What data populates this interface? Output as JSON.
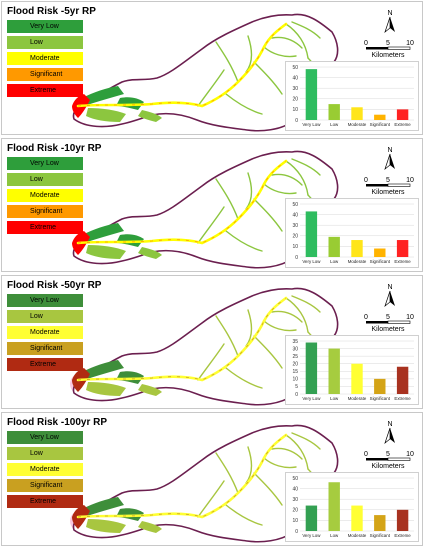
{
  "legend_labels": [
    "Very Low",
    "Low",
    "Moderate",
    "Significant",
    "Extreme"
  ],
  "legend_colors_set1": [
    "#2e9e3b",
    "#8cc63f",
    "#ffff00",
    "#ff9900",
    "#ff0000"
  ],
  "legend_colors_set2": [
    "#3e8e3a",
    "#a8c640",
    "#ffff33",
    "#c9a020",
    "#b02a12"
  ],
  "scale": {
    "ticks": [
      "0",
      "5",
      "10"
    ],
    "unit": "Kilometers"
  },
  "north_label": "N",
  "panels": [
    {
      "title": "Flood Risk -5yr RP",
      "palette": "set1"
    },
    {
      "title": "Flood Risk -10yr RP",
      "palette": "set1"
    },
    {
      "title": "Flood Risk -50yr RP",
      "palette": "set2"
    },
    {
      "title": "Flood Risk -100yr RP",
      "palette": "set2"
    }
  ],
  "chart_data": [
    {
      "type": "bar",
      "categories": [
        "Very Low",
        "Low",
        "Moderate",
        "Significant",
        "Extreme"
      ],
      "values": [
        48,
        15,
        12,
        5,
        10
      ],
      "ylim": [
        0,
        50
      ],
      "yticks": [
        "0",
        "10",
        "20",
        "30",
        "40",
        "50"
      ],
      "colors": [
        "#2ebc5f",
        "#99cc33",
        "#ffe51a",
        "#ffb300",
        "#ff2222"
      ],
      "grid": true
    },
    {
      "type": "bar",
      "categories": [
        "Very Low",
        "Low",
        "Moderate",
        "Significant",
        "Extreme"
      ],
      "values": [
        43,
        19,
        16,
        8,
        16
      ],
      "ylim": [
        0,
        50
      ],
      "yticks": [
        "0",
        "10",
        "20",
        "30",
        "40",
        "50"
      ],
      "colors": [
        "#2ebc5f",
        "#99cc33",
        "#ffe51a",
        "#ffb300",
        "#ff2222"
      ],
      "grid": true
    },
    {
      "type": "bar",
      "categories": [
        "Very Low",
        "Low",
        "Moderate",
        "Significant",
        "Extreme"
      ],
      "values": [
        34,
        30,
        20,
        10,
        18
      ],
      "ylim": [
        0,
        35
      ],
      "yticks": [
        "0",
        "5",
        "10",
        "15",
        "20",
        "25",
        "30",
        "35"
      ],
      "colors": [
        "#33a052",
        "#a6cc3f",
        "#ffff33",
        "#d4a417",
        "#a83220"
      ],
      "grid": true
    },
    {
      "type": "bar",
      "categories": [
        "Very Low",
        "Low",
        "Moderate",
        "Significant",
        "Extreme"
      ],
      "values": [
        24,
        46,
        24,
        15,
        20
      ],
      "ylim": [
        0,
        50
      ],
      "yticks": [
        "0",
        "10",
        "20",
        "30",
        "40",
        "50"
      ],
      "colors": [
        "#33a052",
        "#a6cc3f",
        "#ffff33",
        "#d4a417",
        "#a83220"
      ],
      "grid": true
    }
  ]
}
